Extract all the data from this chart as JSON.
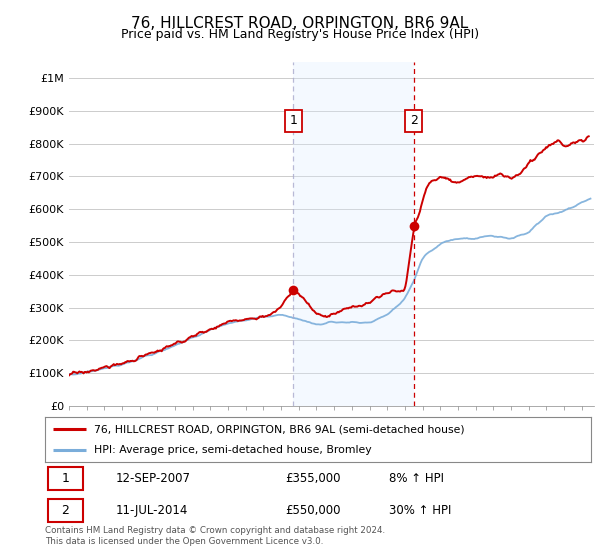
{
  "title": "76, HILLCREST ROAD, ORPINGTON, BR6 9AL",
  "subtitle": "Price paid vs. HM Land Registry's House Price Index (HPI)",
  "ylabel_ticks": [
    "£0",
    "£100K",
    "£200K",
    "£300K",
    "£400K",
    "£500K",
    "£600K",
    "£700K",
    "£800K",
    "£900K",
    "£1M"
  ],
  "ytick_values": [
    0,
    100000,
    200000,
    300000,
    400000,
    500000,
    600000,
    700000,
    800000,
    900000,
    1000000
  ],
  "ylim": [
    0,
    1050000
  ],
  "sale1_year": 2007.7,
  "sale1_value": 355000,
  "sale2_year": 2014.5,
  "sale2_value": 550000,
  "legend_line1": "76, HILLCREST ROAD, ORPINGTON, BR6 9AL (semi-detached house)",
  "legend_line2": "HPI: Average price, semi-detached house, Bromley",
  "table_row1_date": "12-SEP-2007",
  "table_row1_price": "£355,000",
  "table_row1_hpi": "8% ↑ HPI",
  "table_row2_date": "11-JUL-2014",
  "table_row2_price": "£550,000",
  "table_row2_hpi": "30% ↑ HPI",
  "footer": "Contains HM Land Registry data © Crown copyright and database right 2024.\nThis data is licensed under the Open Government Licence v3.0.",
  "red_line_color": "#cc0000",
  "blue_line_color": "#7aadda",
  "vline1_color": "#aaaacc",
  "vline2_color": "#cc0000",
  "shading_color": "#ddeeff",
  "background_color": "#ffffff",
  "grid_color": "#cccccc"
}
